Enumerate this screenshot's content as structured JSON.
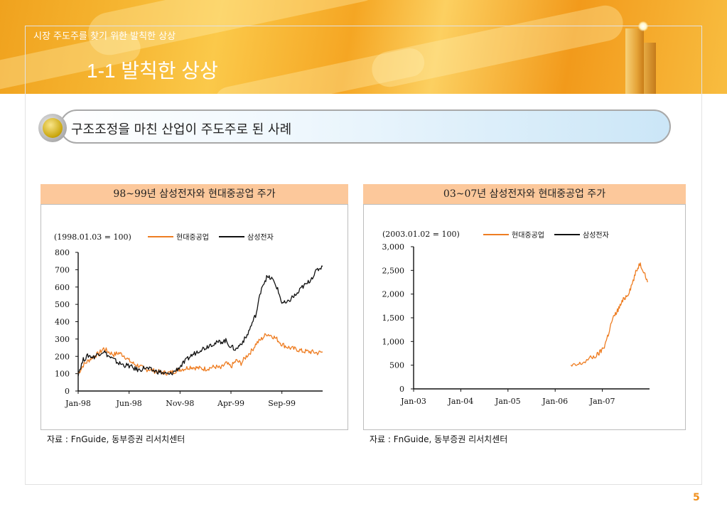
{
  "header": {
    "subtitle": "시장 주도주를 찾기 위한 발칙한 상상",
    "title": "1-1 발칙한 상상"
  },
  "section": {
    "heading": "구조조정을 마친 산업이 주도주로 된 사례"
  },
  "colors": {
    "orange": "#ee7d22",
    "black": "#111111",
    "accent": "#f0901e",
    "panel_title_bg": "#fcc89b"
  },
  "page_number": "5",
  "chart_data": [
    {
      "type": "line",
      "title": "98~99년 삼성전자와 현대중공업 주가",
      "note": "(1998.01.03 = 100)",
      "source": "자료 : FnGuide, 동부증권 리서치센터",
      "x_tick_labels": [
        "Jan-98",
        "Jun-98",
        "Nov-98",
        "Apr-99",
        "Sep-99"
      ],
      "x_ticks": [
        0,
        5,
        10,
        15,
        20
      ],
      "xlim": [
        0,
        24
      ],
      "ylim": [
        0,
        800
      ],
      "y_ticks": [
        0,
        100,
        200,
        300,
        400,
        500,
        600,
        700,
        800
      ],
      "y_tick_labels": [
        "0",
        "100",
        "200",
        "300",
        "400",
        "500",
        "600",
        "700",
        "800"
      ],
      "series": [
        {
          "name": "현대중공업",
          "color": "#ee7d22",
          "x": [
            0,
            0.5,
            1,
            1.5,
            2,
            2.5,
            3,
            3.5,
            4,
            4.5,
            5,
            5.5,
            6,
            6.5,
            7,
            7.5,
            8,
            8.5,
            9,
            9.5,
            10,
            10.5,
            11,
            11.5,
            12,
            12.5,
            13,
            13.5,
            14,
            14.5,
            15,
            15.5,
            16,
            16.5,
            17,
            17.5,
            18,
            18.5,
            19,
            19.5,
            20,
            20.5,
            21,
            21.5,
            22,
            22.5,
            23,
            23.5,
            24
          ],
          "y": [
            100,
            150,
            175,
            200,
            215,
            245,
            225,
            210,
            220,
            205,
            175,
            155,
            145,
            125,
            125,
            115,
            110,
            105,
            105,
            115,
            125,
            130,
            140,
            135,
            130,
            128,
            135,
            140,
            130,
            160,
            140,
            175,
            160,
            200,
            230,
            275,
            300,
            330,
            320,
            300,
            270,
            255,
            245,
            240,
            230,
            228,
            225,
            220,
            225
          ]
        },
        {
          "name": "삼성전자",
          "color": "#111111",
          "x": [
            0,
            0.5,
            1,
            1.5,
            2,
            2.5,
            3,
            3.5,
            4,
            4.5,
            5,
            5.5,
            6,
            6.5,
            7,
            7.5,
            8,
            8.5,
            9,
            9.5,
            10,
            10.5,
            11,
            11.5,
            12,
            12.5,
            13,
            13.5,
            14,
            14.5,
            15,
            15.5,
            16,
            16.5,
            17,
            17.5,
            18,
            18.5,
            19,
            19.5,
            20,
            20.5,
            21,
            21.5,
            22,
            22.5,
            23,
            23.5,
            24
          ],
          "y": [
            100,
            180,
            205,
            195,
            215,
            230,
            200,
            180,
            160,
            150,
            145,
            130,
            120,
            135,
            125,
            115,
            110,
            100,
            95,
            115,
            140,
            170,
            200,
            220,
            240,
            250,
            270,
            275,
            285,
            290,
            255,
            240,
            275,
            310,
            380,
            450,
            600,
            655,
            650,
            600,
            510,
            505,
            540,
            560,
            600,
            620,
            660,
            700,
            720
          ]
        }
      ]
    },
    {
      "type": "line",
      "title": "03~07년 삼성전자와 현대중공업 주가",
      "note": "(2003.01.02 = 100)",
      "source": "자료 : FnGuide, 동부증권 리서치센터",
      "x_tick_labels": [
        "Jan-03",
        "Jan-04",
        "Jan-05",
        "Jan-06",
        "Jan-07"
      ],
      "x_ticks": [
        0,
        12,
        24,
        36,
        48
      ],
      "xlim": [
        0,
        60
      ],
      "ylim": [
        0,
        3000
      ],
      "y_ticks": [
        0,
        500,
        1000,
        1500,
        2000,
        2500,
        3000
      ],
      "y_tick_labels": [
        "0",
        "500",
        "1,000",
        "1,500",
        "2,000",
        "2,500",
        "3,000"
      ],
      "series": [
        {
          "name": "현대중공업",
          "color": "#ee7d22",
          "x": [
            40,
            41.5,
            43,
            45,
            46.5,
            47.5,
            48.5,
            49.5,
            50.5,
            51.5,
            52.5,
            53.5,
            54.5,
            55.5,
            56.5,
            57.5,
            58.5,
            59.5
          ],
          "y": [
            480,
            500,
            550,
            650,
            700,
            780,
            900,
            1150,
            1450,
            1600,
            1750,
            1900,
            2000,
            2200,
            2450,
            2650,
            2500,
            2250
          ]
        },
        {
          "name": "삼성전자",
          "color": "#111111",
          "x": [],
          "y": []
        }
      ]
    }
  ]
}
